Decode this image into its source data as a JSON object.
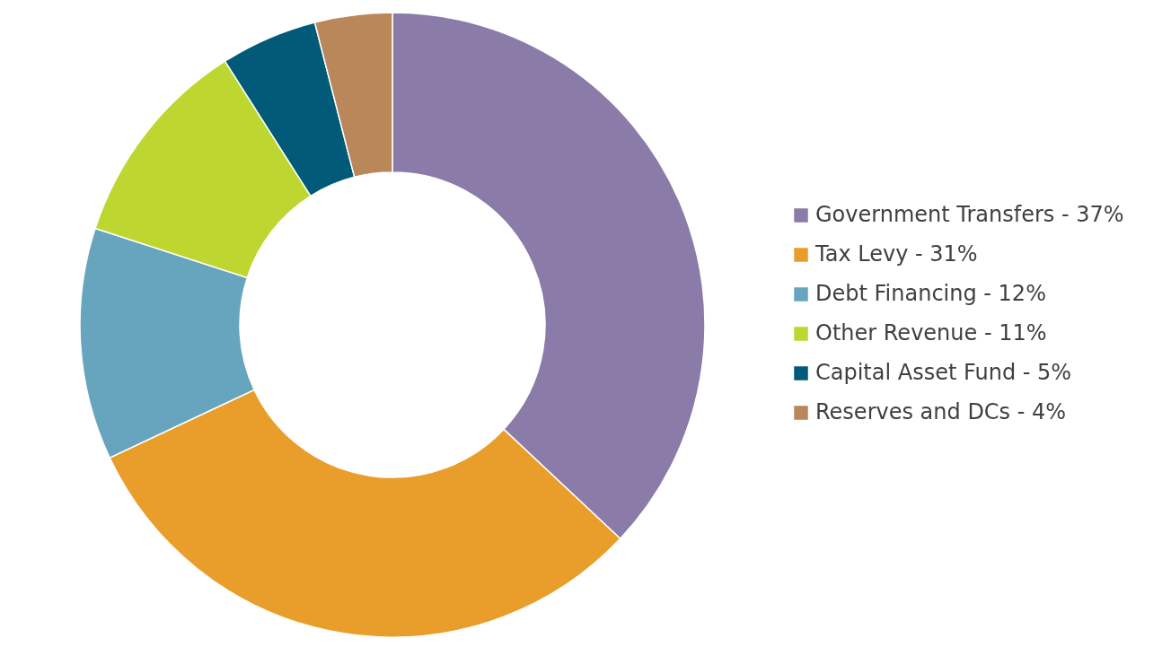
{
  "chart_data": {
    "type": "donut",
    "categories": [
      "Government Transfers - 37%",
      "Tax Levy - 31%",
      "Debt Financing - 12%",
      "Other Revenue - 11%",
      "Capital Asset Fund - 5%",
      "Reserves and DCs - 4%"
    ],
    "values": [
      37,
      31,
      12,
      11,
      5,
      4
    ],
    "colors": [
      "#8b7ba8",
      "#e99e2b",
      "#67a5bf",
      "#bed730",
      "#005a78",
      "#b9875a"
    ],
    "legend": "right"
  }
}
